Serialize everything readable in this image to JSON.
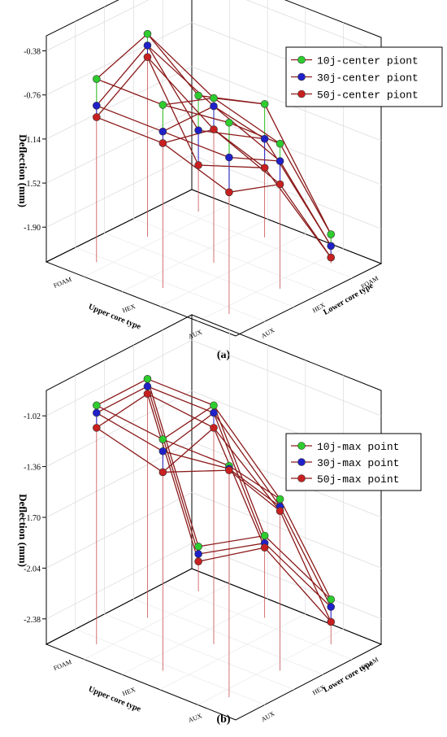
{
  "chart_data": [
    {
      "panel_label": "(a)",
      "type": "3d-scatter-line",
      "zlabel": "Deflection (mm)",
      "xlabel": "Upper core type",
      "ylabel": "Lower core type",
      "upper_core_types": [
        "AUX",
        "HEX",
        "FOAM"
      ],
      "lower_core_types": [
        "AUX",
        "HEX",
        "FOAM"
      ],
      "z_ticks": [
        "-0.38",
        "-0.76",
        "-1.14",
        "-1.52",
        "-1.90"
      ],
      "zlim": [
        -2.2,
        -0.25
      ],
      "series": [
        {
          "name": "10j-center piont",
          "color": "#2ecc2e",
          "values": [
            [
              -0.55,
              -0.95,
              -1.95
            ],
            [
              -0.62,
              -0.78,
              -1.05
            ],
            [
              -0.62,
              -0.45,
              -1.2
            ]
          ]
        },
        {
          "name": "30j-center piont",
          "color": "#2020c8",
          "values": [
            [
              -0.85,
              -1.1,
              -2.05
            ],
            [
              -0.85,
              -0.85,
              -1.35
            ],
            [
              -0.85,
              -0.55,
              -1.5
            ]
          ]
        },
        {
          "name": "50j-center piont",
          "color": "#c82020",
          "values": [
            [
              -1.15,
              -1.3,
              -2.15
            ],
            [
              -0.95,
              -1.05,
              -1.6
            ],
            [
              -0.95,
              -0.65,
              -1.8
            ]
          ]
        }
      ]
    },
    {
      "panel_label": "(b)",
      "type": "3d-scatter-line",
      "zlabel": "Deflection (mm)",
      "xlabel": "Upper core type",
      "ylabel": "Lower core type",
      "upper_core_types": [
        "AUX",
        "HEX",
        "FOAM"
      ],
      "lower_core_types": [
        "AUX",
        "HEX",
        "FOAM"
      ],
      "z_ticks": [
        "-1.02",
        "-1.36",
        "-1.70",
        "-2.04",
        "-2.38"
      ],
      "zlim": [
        -2.55,
        -0.85
      ],
      "series": [
        {
          "name": "10j-max point",
          "color": "#2ecc2e",
          "values": [
            [
              -1.0,
              -1.4,
              -2.25
            ],
            [
              -1.0,
              -0.95,
              -2.0
            ],
            [
              -0.95,
              -0.95,
              -2.25
            ]
          ]
        },
        {
          "name": "30j-max point",
          "color": "#2020c8",
          "values": [
            [
              -1.02,
              -1.45,
              -2.3
            ],
            [
              -1.08,
              -1.0,
              -2.05
            ],
            [
              -1.0,
              -1.0,
              -2.3
            ]
          ]
        },
        {
          "name": "50j-max point",
          "color": "#c82020",
          "values": [
            [
              -1.03,
              -1.48,
              -2.4
            ],
            [
              -1.22,
              -1.1,
              -2.08
            ],
            [
              -1.1,
              -1.05,
              -2.35
            ]
          ]
        }
      ]
    }
  ]
}
